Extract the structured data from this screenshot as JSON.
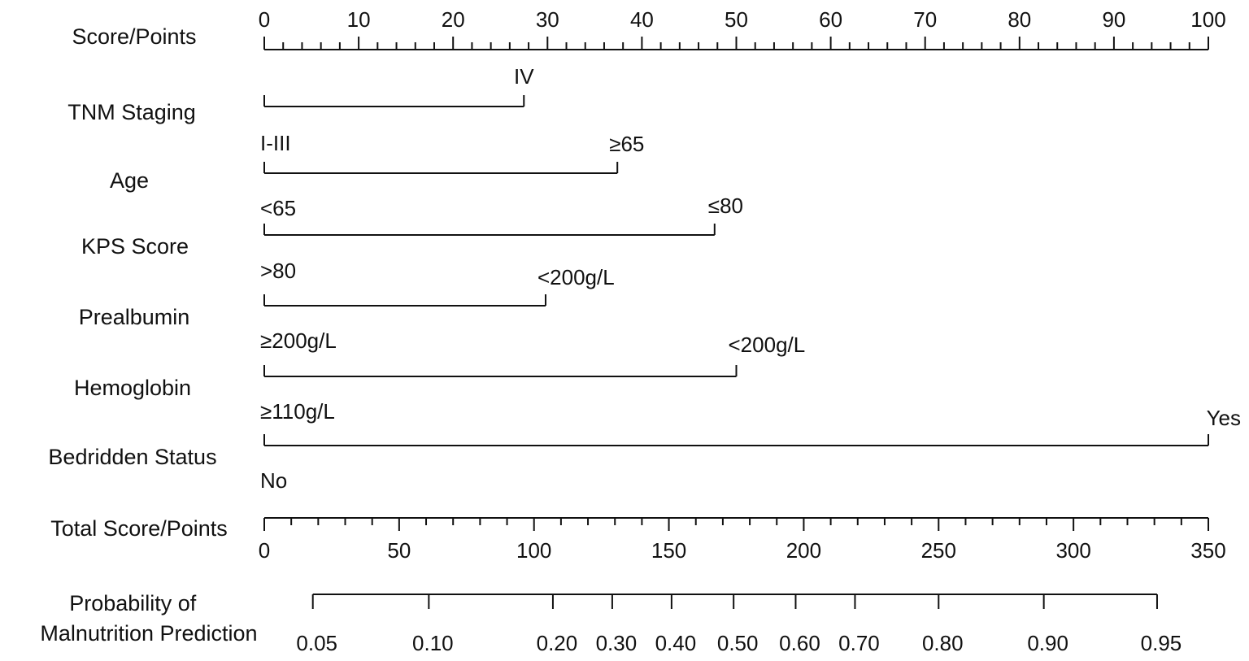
{
  "chart_data": {
    "type": "nomogram",
    "points_axis": {
      "label": "Score/Points",
      "range": [
        0,
        100
      ],
      "tick_labels": [
        "0",
        "10",
        "20",
        "30",
        "40",
        "50",
        "60",
        "70",
        "80",
        "90",
        "100"
      ],
      "major_ticks": [
        0,
        10,
        20,
        30,
        40,
        50,
        60,
        70,
        80,
        90,
        100
      ],
      "minor_step": 2
    },
    "variables": [
      {
        "label": "TNM Staging",
        "levels": [
          {
            "label": "I-III",
            "points": 0
          },
          {
            "label": "IV",
            "points": 27.5
          }
        ]
      },
      {
        "label": "Age",
        "levels": [
          {
            "label": "<65",
            "points": 0
          },
          {
            "label": "≥65",
            "points": 37.4
          }
        ]
      },
      {
        "label": "KPS Score",
        "levels": [
          {
            "label": ">80",
            "points": 0
          },
          {
            "label": "≤80",
            "points": 47.7
          }
        ]
      },
      {
        "label": "Prealbumin",
        "levels": [
          {
            "label": "≥200g/L",
            "points": 0
          },
          {
            "label": "<200g/L",
            "points": 29.8
          }
        ]
      },
      {
        "label": "Hemoglobin",
        "levels": [
          {
            "label": "≥110g/L",
            "points": 0
          },
          {
            "label": "<200g/L",
            "points": 50
          }
        ]
      },
      {
        "label": "Bedridden Status",
        "levels": [
          {
            "label": "No",
            "points": 0
          },
          {
            "label": "Yes",
            "points": 100
          }
        ]
      }
    ],
    "total_points_axis": {
      "label": "Total Score/Points",
      "range": [
        0,
        350
      ],
      "tick_labels": [
        "0",
        "50",
        "100",
        "150",
        "200",
        "250",
        "300",
        "350"
      ],
      "major_ticks": [
        0,
        50,
        100,
        150,
        200,
        250,
        300,
        350
      ],
      "minor_step": 10
    },
    "probability_axis": {
      "label_lines": [
        "Probability of",
        "Malnutrition Prediction"
      ],
      "ticks": [
        {
          "label": "0.05",
          "total_points": 18
        },
        {
          "label": "0.10",
          "total_points": 61
        },
        {
          "label": "0.20",
          "total_points": 107
        },
        {
          "label": "0.30",
          "total_points": 129
        },
        {
          "label": "0.40",
          "total_points": 151
        },
        {
          "label": "0.50",
          "total_points": 174
        },
        {
          "label": "0.60",
          "total_points": 197
        },
        {
          "label": "0.70",
          "total_points": 219
        },
        {
          "label": "0.80",
          "total_points": 250
        },
        {
          "label": "0.90",
          "total_points": 289
        },
        {
          "label": "0.95",
          "total_points": 331
        }
      ]
    }
  }
}
